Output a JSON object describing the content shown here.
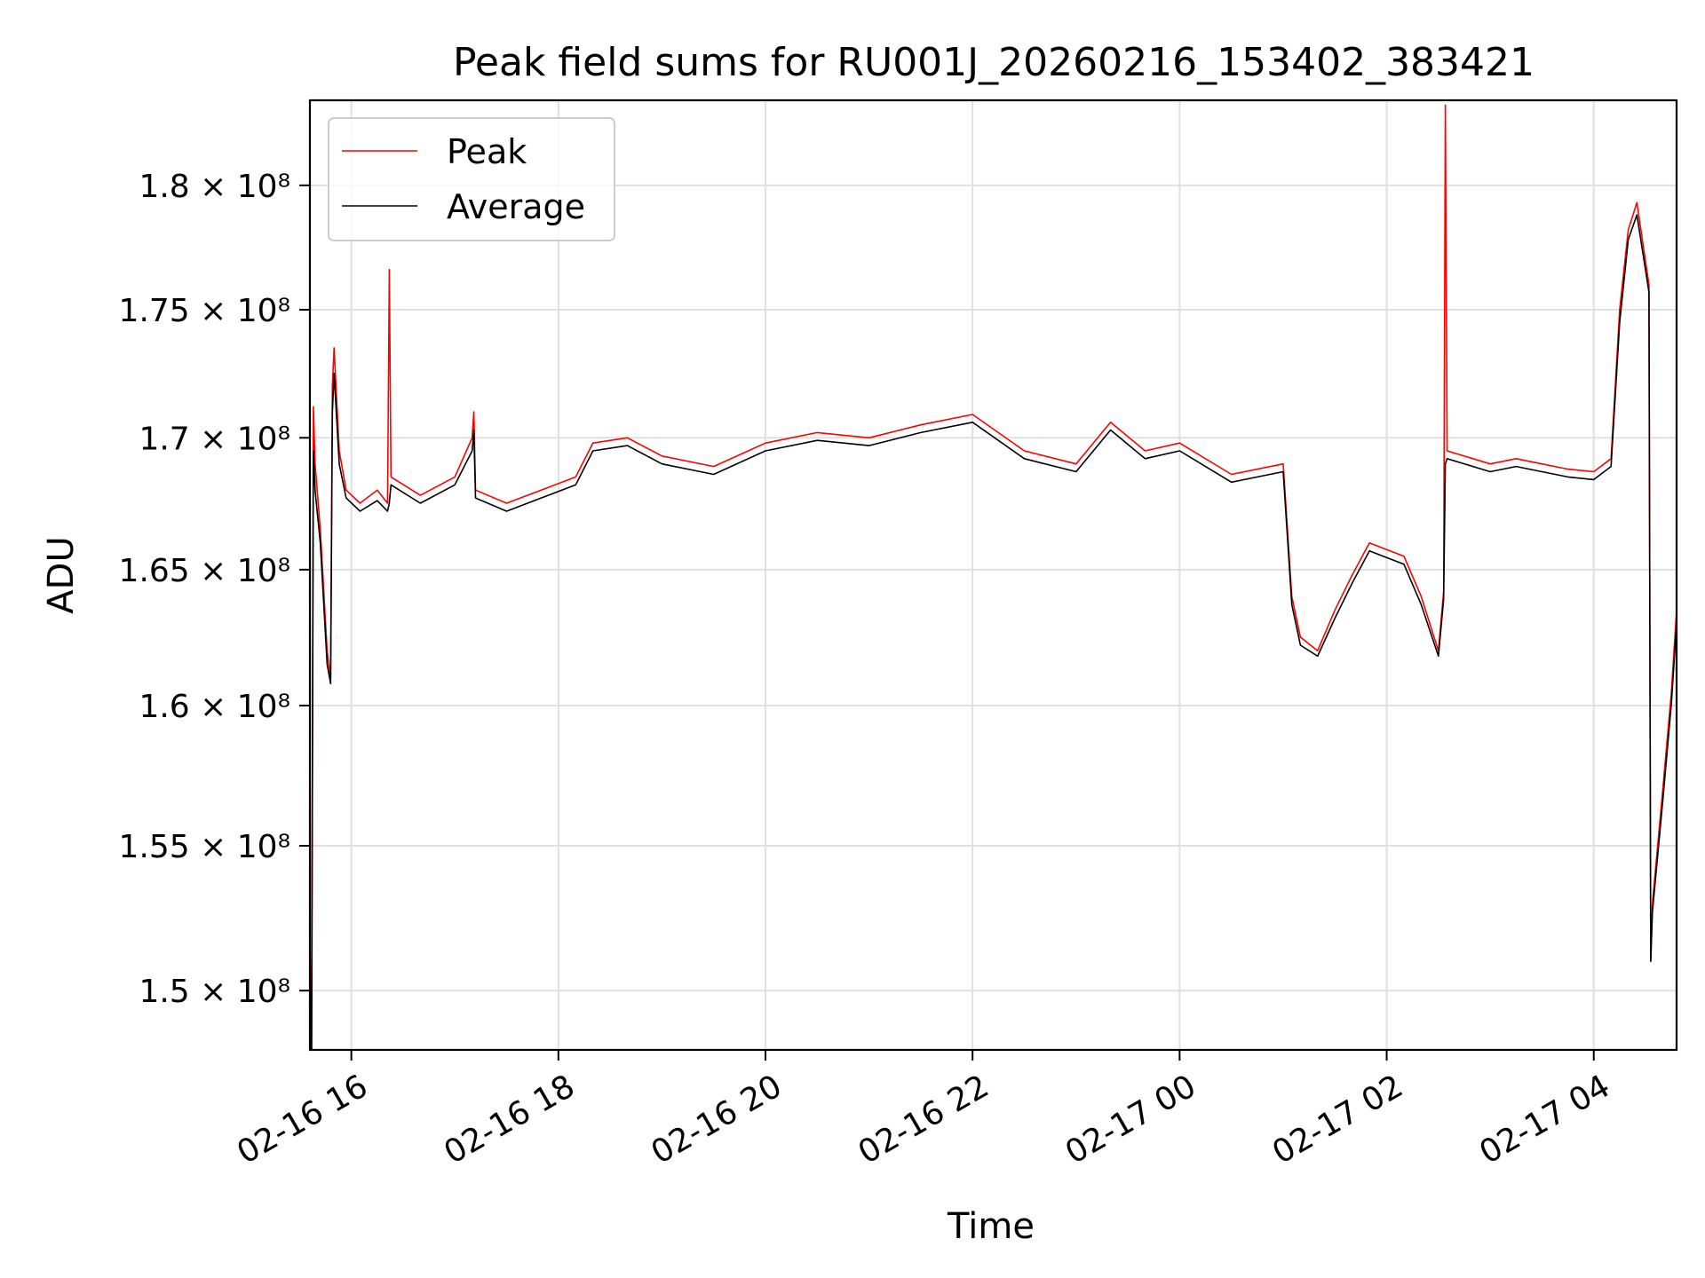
{
  "chart_data": {
    "type": "line",
    "title": "Peak field sums for RU001J_20260216_153402_383421",
    "xlabel": "Time",
    "ylabel": "ADU",
    "xlim": [
      "2026-02-16 15:36",
      "2026-02-17 04:48"
    ],
    "ylim": [
      148000000,
      183500000
    ],
    "yscale": "log",
    "grid": true,
    "legend_position": "upper left",
    "x_ticks": [
      {
        "value": "2026-02-16 16:00",
        "label": "02-16 16"
      },
      {
        "value": "2026-02-16 18:00",
        "label": "02-16 18"
      },
      {
        "value": "2026-02-16 20:00",
        "label": "02-16 20"
      },
      {
        "value": "2026-02-16 22:00",
        "label": "02-16 22"
      },
      {
        "value": "2026-02-17 00:00",
        "label": "02-17 00"
      },
      {
        "value": "2026-02-17 02:00",
        "label": "02-17 02"
      },
      {
        "value": "2026-02-17 04:00",
        "label": "02-17 04"
      }
    ],
    "y_ticks": [
      {
        "value": 150000000,
        "label": "1.5 × 10⁸"
      },
      {
        "value": 155000000,
        "label": "1.55 × 10⁸"
      },
      {
        "value": 160000000,
        "label": "1.6 × 10⁸"
      },
      {
        "value": 165000000,
        "label": "1.65 × 10⁸"
      },
      {
        "value": 170000000,
        "label": "1.7 × 10⁸"
      },
      {
        "value": 175000000,
        "label": "1.75 × 10⁸"
      },
      {
        "value": 180000000,
        "label": "1.8 × 10⁸"
      }
    ],
    "series": [
      {
        "name": "Peak",
        "color": "#ff0000",
        "x": [
          "2026-02-16 15:36",
          "2026-02-16 15:37",
          "2026-02-16 15:38",
          "2026-02-16 15:39",
          "2026-02-16 15:42",
          "2026-02-16 15:46",
          "2026-02-16 15:48",
          "2026-02-16 15:49",
          "2026-02-16 15:50",
          "2026-02-16 15:53",
          "2026-02-16 15:57",
          "2026-02-16 16:05",
          "2026-02-16 16:15",
          "2026-02-16 16:21",
          "2026-02-16 16:22",
          "2026-02-16 16:23",
          "2026-02-16 16:40",
          "2026-02-16 17:00",
          "2026-02-16 17:10",
          "2026-02-16 17:11",
          "2026-02-16 17:12",
          "2026-02-16 17:30",
          "2026-02-16 17:50",
          "2026-02-16 18:10",
          "2026-02-16 18:20",
          "2026-02-16 18:40",
          "2026-02-16 19:00",
          "2026-02-16 19:30",
          "2026-02-16 20:00",
          "2026-02-16 20:30",
          "2026-02-16 21:00",
          "2026-02-16 21:30",
          "2026-02-16 22:00",
          "2026-02-16 22:30",
          "2026-02-16 23:00",
          "2026-02-16 23:20",
          "2026-02-16 23:40",
          "2026-02-17 00:00",
          "2026-02-17 00:30",
          "2026-02-17 01:00",
          "2026-02-17 01:05",
          "2026-02-17 01:10",
          "2026-02-17 01:20",
          "2026-02-17 01:30",
          "2026-02-17 01:40",
          "2026-02-17 01:50",
          "2026-02-17 02:10",
          "2026-02-17 02:20",
          "2026-02-17 02:30",
          "2026-02-17 02:33",
          "2026-02-17 02:34",
          "2026-02-17 02:35",
          "2026-02-17 02:50",
          "2026-02-17 03:00",
          "2026-02-17 03:15",
          "2026-02-17 03:30",
          "2026-02-17 03:45",
          "2026-02-17 04:00",
          "2026-02-17 04:10",
          "2026-02-17 04:15",
          "2026-02-17 04:20",
          "2026-02-17 04:25",
          "2026-02-17 04:32",
          "2026-02-17 04:33",
          "2026-02-17 04:34",
          "2026-02-17 04:40",
          "2026-02-17 04:45",
          "2026-02-17 04:48"
        ],
        "y": [
          151500000,
          148000000,
          171200000,
          169000000,
          166500000,
          162000000,
          161000000,
          172000000,
          173500000,
          169500000,
          168000000,
          167500000,
          168000000,
          167500000,
          176600000,
          168500000,
          167800000,
          168500000,
          170000000,
          171000000,
          168000000,
          167500000,
          168000000,
          168500000,
          169800000,
          170000000,
          169300000,
          168900000,
          169800000,
          170200000,
          170000000,
          170500000,
          170900000,
          169500000,
          169000000,
          170600000,
          169500000,
          169800000,
          168600000,
          169000000,
          164000000,
          162500000,
          162000000,
          163500000,
          164800000,
          166000000,
          165500000,
          164000000,
          162000000,
          164200000,
          183300000,
          169500000,
          169200000,
          169000000,
          169200000,
          169000000,
          168800000,
          168700000,
          169200000,
          175000000,
          178200000,
          179300000,
          176000000,
          151000000,
          153000000,
          157000000,
          160500000,
          163500000
        ]
      },
      {
        "name": "Average",
        "color": "#000000",
        "x": [
          "2026-02-16 15:36",
          "2026-02-16 15:37",
          "2026-02-16 15:38",
          "2026-02-16 15:39",
          "2026-02-16 15:42",
          "2026-02-16 15:46",
          "2026-02-16 15:48",
          "2026-02-16 15:49",
          "2026-02-16 15:50",
          "2026-02-16 15:53",
          "2026-02-16 15:57",
          "2026-02-16 16:05",
          "2026-02-16 16:15",
          "2026-02-16 16:21",
          "2026-02-16 16:22",
          "2026-02-16 16:23",
          "2026-02-16 16:40",
          "2026-02-16 17:00",
          "2026-02-16 17:10",
          "2026-02-16 17:11",
          "2026-02-16 17:12",
          "2026-02-16 17:30",
          "2026-02-16 17:50",
          "2026-02-16 18:10",
          "2026-02-16 18:20",
          "2026-02-16 18:40",
          "2026-02-16 19:00",
          "2026-02-16 19:30",
          "2026-02-16 20:00",
          "2026-02-16 20:30",
          "2026-02-16 21:00",
          "2026-02-16 21:30",
          "2026-02-16 22:00",
          "2026-02-16 22:30",
          "2026-02-16 23:00",
          "2026-02-16 23:20",
          "2026-02-16 23:40",
          "2026-02-17 00:00",
          "2026-02-17 00:30",
          "2026-02-17 01:00",
          "2026-02-17 01:05",
          "2026-02-17 01:10",
          "2026-02-17 01:20",
          "2026-02-17 01:30",
          "2026-02-17 01:40",
          "2026-02-17 01:50",
          "2026-02-17 02:10",
          "2026-02-17 02:20",
          "2026-02-17 02:30",
          "2026-02-17 02:33",
          "2026-02-17 02:34",
          "2026-02-17 02:35",
          "2026-02-17 02:50",
          "2026-02-17 03:00",
          "2026-02-17 03:15",
          "2026-02-17 03:30",
          "2026-02-17 03:45",
          "2026-02-17 04:00",
          "2026-02-17 04:10",
          "2026-02-17 04:15",
          "2026-02-17 04:20",
          "2026-02-17 04:25",
          "2026-02-17 04:32",
          "2026-02-17 04:33",
          "2026-02-17 04:34",
          "2026-02-17 04:40",
          "2026-02-17 04:45",
          "2026-02-17 04:48"
        ],
        "y": [
          150500000,
          148000000,
          169500000,
          168000000,
          166000000,
          161500000,
          160800000,
          171000000,
          172500000,
          169000000,
          167700000,
          167200000,
          167600000,
          167200000,
          167500000,
          168200000,
          167500000,
          168200000,
          169500000,
          170300000,
          167700000,
          167200000,
          167700000,
          168200000,
          169500000,
          169700000,
          169000000,
          168600000,
          169500000,
          169900000,
          169700000,
          170200000,
          170600000,
          169200000,
          168700000,
          170300000,
          169200000,
          169500000,
          168300000,
          168700000,
          163700000,
          162200000,
          161800000,
          163200000,
          164500000,
          165700000,
          165200000,
          163700000,
          161800000,
          163900000,
          169000000,
          169200000,
          168900000,
          168700000,
          168900000,
          168700000,
          168500000,
          168400000,
          168900000,
          174500000,
          177800000,
          178800000,
          175700000,
          151000000,
          152700000,
          156600000,
          160100000,
          163000000
        ]
      }
    ]
  }
}
